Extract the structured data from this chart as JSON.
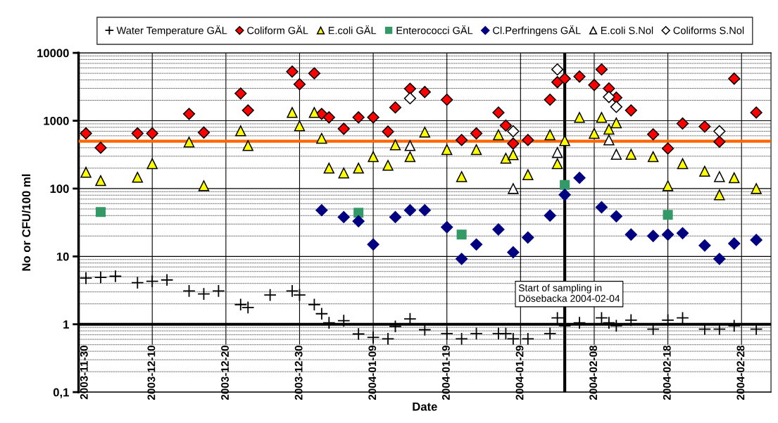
{
  "chart_data": {
    "type": "scatter",
    "ylabel": "No or CFU/100 ml",
    "xlabel": "Date",
    "xlim": [
      "2003-11-30",
      "2004-03-03"
    ],
    "xticks": [
      "2003-11-30",
      "2003-12-10",
      "2003-12-20",
      "2003-12-30",
      "2004-01-09",
      "2004-01-19",
      "2004-01-29",
      "2004-02-08",
      "2004-02-18",
      "2004-02-28"
    ],
    "log": "y",
    "ylim": [
      0.1,
      10000
    ],
    "yticks": [
      {
        "value": 0.1,
        "label": "0,1"
      },
      1,
      10,
      100,
      1000,
      10000
    ],
    "grid": true,
    "legend": "top",
    "ref_lines": [
      {
        "axis": "y",
        "value": 500,
        "color": "#ff6600"
      },
      {
        "axis": "y",
        "value": 1,
        "color": "#000000"
      },
      {
        "axis": "x",
        "value": "2004-02-04",
        "label": "Start of sampling in\nDösebacka 2004-02-04",
        "color": "#000000"
      }
    ],
    "series": [
      {
        "name": "Water Temperature GÄL",
        "color": "#000000",
        "marker": "cross",
        "x": [
          "2003-12-01",
          "2003-12-03",
          "2003-12-05",
          "2003-12-08",
          "2003-12-10",
          "2003-12-12",
          "2003-12-15",
          "2003-12-17",
          "2003-12-19",
          "2003-12-22",
          "2003-12-23",
          "2003-12-26",
          "2003-12-29",
          "2003-12-30",
          "2004-01-01",
          "2004-01-02",
          "2004-01-03",
          "2004-01-05",
          "2004-01-07",
          "2004-01-09",
          "2004-01-11",
          "2004-01-12",
          "2004-01-14",
          "2004-01-16",
          "2004-01-19",
          "2004-01-21",
          "2004-01-23",
          "2004-01-26",
          "2004-01-27",
          "2004-01-28",
          "2004-01-30",
          "2004-02-02",
          "2004-02-03",
          "2004-02-04",
          "2004-02-06",
          "2004-02-09",
          "2004-02-10",
          "2004-02-11",
          "2004-02-13",
          "2004-02-16",
          "2004-02-18",
          "2004-02-20",
          "2004-02-23",
          "2004-02-25",
          "2004-02-27",
          "2004-03-01"
        ],
        "values": [
          4.8,
          4.9,
          5.1,
          4.1,
          4.3,
          4.5,
          3.1,
          2.8,
          3.1,
          1.95,
          1.77,
          2.7,
          3.1,
          2.7,
          1.95,
          1.43,
          1.05,
          1.13,
          0.72,
          0.64,
          0.61,
          0.93,
          1.2,
          0.83,
          0.73,
          0.61,
          0.73,
          0.73,
          0.73,
          0.61,
          0.61,
          0.73,
          1.24,
          0.95,
          1.05,
          1.24,
          1.05,
          0.95,
          1.15,
          0.85,
          1.15,
          1.24,
          0.85,
          0.85,
          0.95,
          0.85
        ]
      },
      {
        "name": "Coliform GÄL",
        "color": "#ff0000",
        "marker": "diamond",
        "x": [
          "2003-12-01",
          "2003-12-03",
          "2003-12-08",
          "2003-12-10",
          "2003-12-15",
          "2003-12-17",
          "2003-12-22",
          "2003-12-23",
          "2003-12-29",
          "2003-12-30",
          "2004-01-01",
          "2004-01-02",
          "2004-01-03",
          "2004-01-05",
          "2004-01-07",
          "2004-01-09",
          "2004-01-11",
          "2004-01-12",
          "2004-01-14",
          "2004-01-16",
          "2004-01-19",
          "2004-01-21",
          "2004-01-23",
          "2004-01-26",
          "2004-01-27",
          "2004-01-28",
          "2004-01-30",
          "2004-02-02",
          "2004-02-03",
          "2004-02-04",
          "2004-02-06",
          "2004-02-08",
          "2004-02-09",
          "2004-02-10",
          "2004-02-11",
          "2004-02-13",
          "2004-02-16",
          "2004-02-18",
          "2004-02-20",
          "2004-02-23",
          "2004-02-25",
          "2004-02-27",
          "2004-03-01"
        ],
        "values": [
          650,
          400,
          650,
          650,
          1260,
          670,
          2520,
          1420,
          5300,
          3450,
          5000,
          1260,
          1120,
          760,
          1120,
          1120,
          690,
          1570,
          2960,
          2650,
          2040,
          520,
          650,
          1320,
          850,
          460,
          520,
          2040,
          3700,
          4170,
          4480,
          3360,
          5700,
          2990,
          2190,
          1420,
          630,
          390,
          910,
          820,
          490,
          4170,
          1320
        ]
      },
      {
        "name": "E.coli GÄL",
        "color": "#ffff00",
        "marker": "triangle",
        "x": [
          "2003-12-01",
          "2003-12-03",
          "2003-12-08",
          "2003-12-10",
          "2003-12-15",
          "2003-12-17",
          "2003-12-22",
          "2003-12-23",
          "2003-12-29",
          "2003-12-30",
          "2004-01-01",
          "2004-01-02",
          "2004-01-03",
          "2004-01-05",
          "2004-01-07",
          "2004-01-09",
          "2004-01-11",
          "2004-01-12",
          "2004-01-14",
          "2004-01-16",
          "2004-01-19",
          "2004-01-21",
          "2004-01-23",
          "2004-01-26",
          "2004-01-27",
          "2004-01-28",
          "2004-01-30",
          "2004-02-02",
          "2004-02-03",
          "2004-02-04",
          "2004-02-06",
          "2004-02-08",
          "2004-02-09",
          "2004-02-10",
          "2004-02-11",
          "2004-02-13",
          "2004-02-16",
          "2004-02-18",
          "2004-02-20",
          "2004-02-23",
          "2004-02-25",
          "2004-02-27",
          "2004-03-01"
        ],
        "values": [
          174,
          131,
          147,
          233,
          485,
          110,
          710,
          430,
          1320,
          840,
          1320,
          550,
          200,
          170,
          200,
          295,
          220,
          440,
          295,
          680,
          375,
          150,
          375,
          620,
          280,
          315,
          160,
          620,
          233,
          510,
          1120,
          650,
          1120,
          750,
          930,
          320,
          295,
          110,
          233,
          180,
          81,
          144,
          100
        ]
      },
      {
        "name": "Enterococci GÄL",
        "color": "#339966",
        "marker": "square",
        "x": [
          "2003-12-03",
          "2004-01-07",
          "2004-01-21",
          "2004-02-04",
          "2004-02-18"
        ],
        "values": [
          45,
          44,
          21,
          113,
          41
        ]
      },
      {
        "name": "Cl.Perfringens GÄL",
        "color": "#000080",
        "marker": "diamond",
        "x": [
          "2004-01-02",
          "2004-01-05",
          "2004-01-07",
          "2004-01-09",
          "2004-01-12",
          "2004-01-14",
          "2004-01-16",
          "2004-01-19",
          "2004-01-21",
          "2004-01-23",
          "2004-01-26",
          "2004-01-28",
          "2004-01-30",
          "2004-02-02",
          "2004-02-04",
          "2004-02-06",
          "2004-02-09",
          "2004-02-11",
          "2004-02-13",
          "2004-02-16",
          "2004-02-18",
          "2004-02-20",
          "2004-02-23",
          "2004-02-25",
          "2004-02-27",
          "2004-03-01"
        ],
        "values": [
          48,
          38,
          33,
          15,
          38,
          48,
          48,
          27,
          9.2,
          15,
          25,
          11.5,
          19,
          40,
          81,
          144,
          53,
          39,
          21,
          20,
          21,
          22,
          14.5,
          9.2,
          15.5,
          17.5
        ]
      },
      {
        "name": "E.coli S.Nol",
        "color": "#ffffff",
        "marker": "triangle",
        "x": [
          "2004-01-14",
          "2004-01-28",
          "2004-02-03",
          "2004-02-10",
          "2004-02-11",
          "2004-02-25"
        ],
        "values": [
          430,
          100,
          340,
          520,
          320,
          150
        ]
      },
      {
        "name": "Coliforms S.Nol",
        "color": "#ffffff",
        "marker": "diamond",
        "x": [
          "2004-01-14",
          "2004-01-28",
          "2004-02-03",
          "2004-02-10",
          "2004-02-11",
          "2004-02-25"
        ],
        "values": [
          2140,
          700,
          5700,
          2240,
          1600,
          700
        ]
      }
    ]
  }
}
